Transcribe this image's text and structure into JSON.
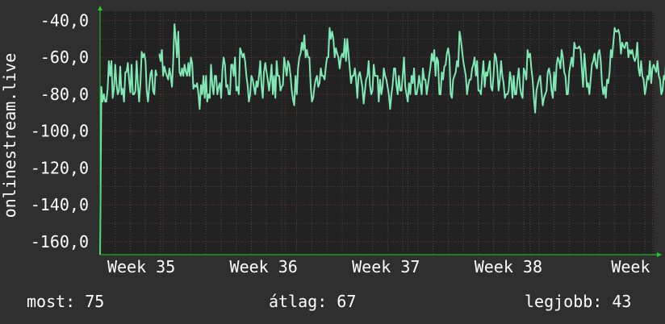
{
  "colors": {
    "background": "#2f2f2f",
    "plot_background": "#222222",
    "grid_major": "#6a3a3a",
    "grid_minor": "#4a4a4a",
    "line": "#7fe8b4",
    "axis": "#22cc22",
    "text": "#ffffff"
  },
  "chart_data": {
    "type": "line",
    "ylabel": "onlinestream.live",
    "ylim": [
      -167,
      -35
    ],
    "yticks": [
      -40,
      -60,
      -80,
      -100,
      -120,
      -140,
      -160
    ],
    "ytick_labels": [
      "-40,0",
      "-60,0",
      "-80,0",
      "-100,0",
      "-120,0",
      "-140,0",
      "-160,0"
    ],
    "xlim": [
      0,
      439
    ],
    "xticks": [
      {
        "label": "Week 35",
        "x": 50
      },
      {
        "label": "Week 36",
        "x": 147
      },
      {
        "label": "Week 37",
        "x": 244
      },
      {
        "label": "Week 38",
        "x": 341
      },
      {
        "label": "Week",
        "x": 438
      }
    ],
    "grid": true,
    "series": [
      {
        "values": [
          -200,
          -76,
          -84,
          -80,
          -84,
          -84,
          -77,
          -62,
          -70,
          -62,
          -82,
          -77,
          -64,
          -74,
          -80,
          -78,
          -65,
          -80,
          -77,
          -84,
          -68,
          -68,
          -63,
          -72,
          -79,
          -64,
          -80,
          -80,
          -78,
          -62,
          -75,
          -84,
          -74,
          -57,
          -60,
          -58,
          -62,
          -78,
          -84,
          -76,
          -69,
          -67,
          -78,
          -80,
          -67,
          -70,
          null,
          -58,
          -62,
          -56,
          -70,
          -65,
          -68,
          -70,
          -72,
          -66,
          -70,
          -76,
          -62,
          -42,
          -50,
          -60,
          -46,
          -68,
          -70,
          -66,
          -70,
          -64,
          -68,
          -70,
          -63,
          -70,
          -60,
          -63,
          -77,
          -75,
          -76,
          -74,
          -80,
          -88,
          -75,
          -80,
          -70,
          -82,
          -70,
          -84,
          -80,
          -82,
          -64,
          -75,
          -80,
          -70,
          -70,
          -80,
          -76,
          -74,
          -82,
          -67,
          -60,
          -64,
          -76,
          -75,
          -80,
          -80,
          -64,
          -64,
          -70,
          -60,
          -78,
          -76,
          -80,
          -55,
          -57,
          -60,
          -58,
          -62,
          -70,
          -75,
          -84,
          -80,
          -70,
          -72,
          -76,
          -80,
          -73,
          -76,
          -70,
          -62,
          -75,
          -82,
          -68,
          -63,
          -68,
          -72,
          -78,
          -72,
          -64,
          -80,
          -70,
          -82,
          -62,
          -70,
          -70,
          -78,
          -76,
          -75,
          -60,
          -65,
          -70,
          -62,
          -64,
          -70,
          -78,
          -83,
          -86,
          -70,
          -80,
          -66,
          -60,
          -58,
          -52,
          -56,
          -48,
          -60,
          -56,
          -60,
          -60,
          -76,
          -84,
          -82,
          -76,
          -72,
          -70,
          -76,
          -74,
          -66,
          -70,
          -70,
          -72,
          -65,
          -60,
          -60,
          -44,
          -50,
          -46,
          -50,
          -60,
          -55,
          -58,
          -60,
          -66,
          -60,
          -58,
          -60,
          -50,
          -62,
          -50,
          -58,
          -66,
          -74,
          -70,
          -70,
          -66,
          -72,
          -82,
          -70,
          -68,
          -72,
          -76,
          -85,
          -78,
          -72,
          -70,
          -62,
          -75,
          -80,
          -78,
          -64,
          -70,
          -70,
          -70,
          -84,
          -72,
          -80,
          -76,
          -66,
          -70,
          -72,
          -76,
          -80,
          -88,
          -80,
          -75,
          -66,
          -66,
          -75,
          -80,
          -70,
          -78,
          -78,
          -70,
          -60,
          -76,
          -80,
          -84,
          -74,
          -80,
          -70,
          -74,
          -66,
          -80,
          -80,
          -76,
          -70,
          -75,
          -80,
          -66,
          -72,
          -72,
          -80,
          -75,
          -70,
          -65,
          -58,
          -62,
          -56,
          -70,
          -60,
          -62,
          -80,
          -80,
          -68,
          -72,
          -65,
          -64,
          -58,
          -55,
          -60,
          -80,
          -82,
          -72,
          -70,
          -68,
          -62,
          -65,
          -46,
          -50,
          -56,
          -62,
          -66,
          -70,
          -80,
          -75,
          -72,
          -72,
          -66,
          -64,
          -60,
          -70,
          -62,
          -78,
          -78,
          -80,
          -70,
          -62,
          -76,
          -68,
          -70,
          -66,
          -62,
          -76,
          -78,
          -70,
          -58,
          -60,
          -66,
          -78,
          -72,
          -62,
          -70,
          -74,
          -82,
          -80,
          -80,
          -78,
          -68,
          -72,
          -82,
          -70,
          -80,
          -80,
          -72,
          -66,
          -76,
          -80,
          -82,
          -66,
          -68,
          -72,
          -56,
          -60,
          -58,
          -66,
          -72,
          -82,
          -90,
          -78,
          -75,
          -72,
          -70,
          -78,
          -86,
          -82,
          -80,
          -78,
          -68,
          -66,
          -70,
          -78,
          -82,
          -68,
          -78,
          -64,
          -60,
          -62,
          -66,
          -56,
          -60,
          -68,
          -70,
          -80,
          -80,
          -68,
          -64,
          -60,
          -65,
          -52,
          -55,
          -55,
          -55,
          -54,
          -56,
          -66,
          -76,
          -58,
          -66,
          -76,
          -74,
          -80,
          -72,
          -64,
          -62,
          -58,
          -64,
          -66,
          -58,
          -56,
          -62,
          -74,
          -80,
          -76,
          -82,
          -72,
          -74,
          -68,
          -56,
          -60,
          -52,
          -44,
          -46,
          -46,
          -45,
          -48,
          -58,
          -52,
          -54,
          -55,
          -52,
          -52,
          -60,
          -56,
          -58,
          -56,
          -60,
          -62,
          -60,
          -52,
          -66,
          -70,
          -62,
          -70,
          -72,
          -80,
          -76,
          -70,
          -72,
          -62,
          -74,
          -66,
          -64,
          -66,
          -68,
          -62,
          -70,
          -72,
          -80,
          -78,
          -70,
          -72,
          -58,
          -64,
          -70,
          -64,
          -62,
          -70,
          -76,
          -82,
          -74,
          -70,
          -68,
          -68,
          -70,
          -72,
          -80,
          -72,
          -70,
          -60,
          -64,
          -68,
          -56,
          -58,
          -60,
          -66,
          -72,
          -80,
          -76,
          -76,
          -74,
          -76
        ]
      }
    ]
  },
  "stats": {
    "current": "most: 75",
    "average": "átlag: 67",
    "best": "legjobb: 43"
  }
}
